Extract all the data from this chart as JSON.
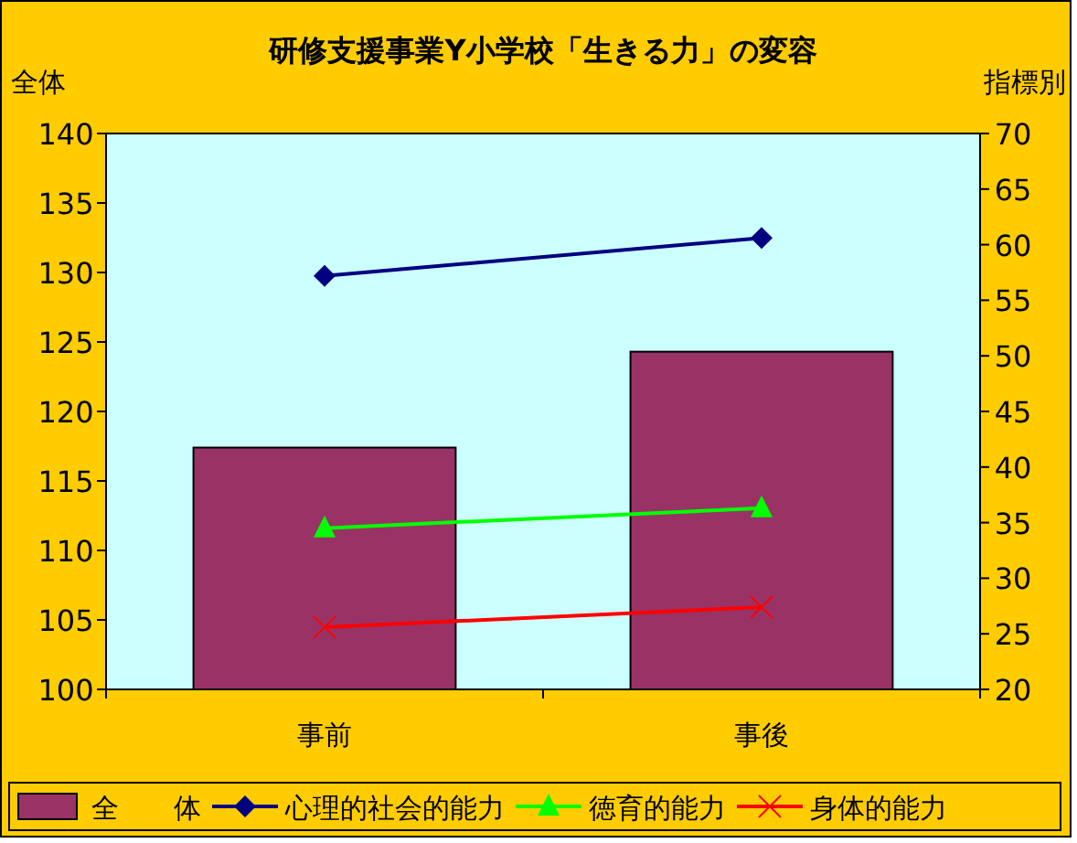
{
  "chart_data": {
    "type": "bar",
    "title": "研修支援事業Y小学校「生きる力」の変容",
    "ylabel": "全体",
    "y2label": "指標別",
    "categories": [
      "事前",
      "事後"
    ],
    "series": [
      {
        "name": "全　　体",
        "color": "#993366",
        "values": [
          117.4,
          124.3
        ]
      },
      {
        "name": "心理的社会的能力",
        "type": "line",
        "axis": "y2",
        "color": "#000080",
        "marker": "diamond",
        "values": [
          57.2,
          60.6
        ]
      },
      {
        "name": "徳育的能力",
        "type": "line",
        "axis": "y2",
        "color": "#00ff00",
        "marker": "triangle",
        "values": [
          34.5,
          36.3
        ]
      },
      {
        "name": "身体的能力",
        "type": "line",
        "axis": "y2",
        "color": "#ff0000",
        "marker": "cross",
        "values": [
          25.6,
          27.4
        ]
      }
    ],
    "ylim": [
      100,
      140
    ],
    "yticks": [
      100,
      105,
      110,
      115,
      120,
      125,
      130,
      135,
      140
    ],
    "y2lim": [
      20,
      70
    ],
    "y2ticks": [
      20,
      25,
      30,
      35,
      40,
      45,
      50,
      55,
      60,
      65,
      70
    ],
    "grid": false,
    "legend": "bottom"
  }
}
